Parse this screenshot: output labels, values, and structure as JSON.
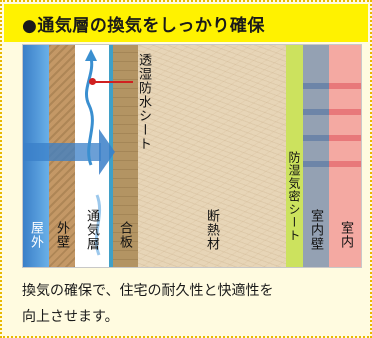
{
  "title": "●通気層の換気をしっかり確保",
  "layers": {
    "outside": "屋外",
    "exterior_wall": "外壁",
    "air_layer": "通気層",
    "plywood": "合板",
    "insulation": "断熱材",
    "vapor_barrier": "防湿気密シート",
    "interior_wall": "室内壁",
    "inside": "室内"
  },
  "callout": "透湿防水シート",
  "description": "換気の確保で、住宅の耐久性と快適性を\n向上させます。",
  "colors": {
    "title_background": "#fff200",
    "card_background": "#fffbe0",
    "outside": "#3a7fc8",
    "exterior_wall": "#c49866",
    "air_layer": "#ffffff",
    "plywood": "#b39463",
    "insulation": "#e7d5b7",
    "vapor_barrier": "#cce25e",
    "interior_wall": "#94a1b3",
    "inside": "#f4a9a2"
  }
}
